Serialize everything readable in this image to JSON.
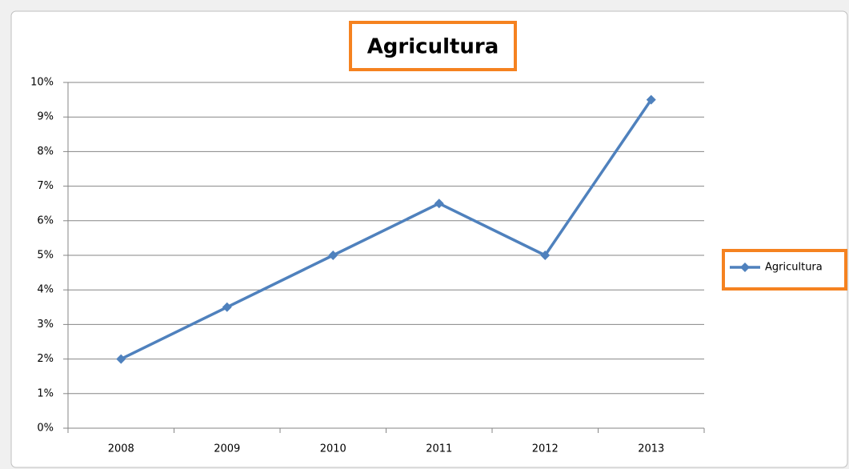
{
  "chart_data": {
    "type": "line",
    "title": "Agricultura",
    "categories": [
      "2008",
      "2009",
      "2010",
      "2011",
      "2012",
      "2013"
    ],
    "series": [
      {
        "name": "Agricultura",
        "color": "#4f81bd",
        "values": [
          2,
          3.5,
          5,
          6.5,
          5,
          9.5
        ]
      }
    ],
    "ylim": [
      0,
      10
    ],
    "yticks": [
      {
        "value": 0,
        "label": "0%"
      },
      {
        "value": 1,
        "label": "1%"
      },
      {
        "value": 2,
        "label": "2%"
      },
      {
        "value": 3,
        "label": "3%"
      },
      {
        "value": 4,
        "label": "4%"
      },
      {
        "value": 5,
        "label": "5%"
      },
      {
        "value": 6,
        "label": "6%"
      },
      {
        "value": 7,
        "label": "7%"
      },
      {
        "value": 8,
        "label": "8%"
      },
      {
        "value": 9,
        "label": "9%"
      },
      {
        "value": 10,
        "label": "10%"
      }
    ],
    "grid": true,
    "legend": "right"
  }
}
